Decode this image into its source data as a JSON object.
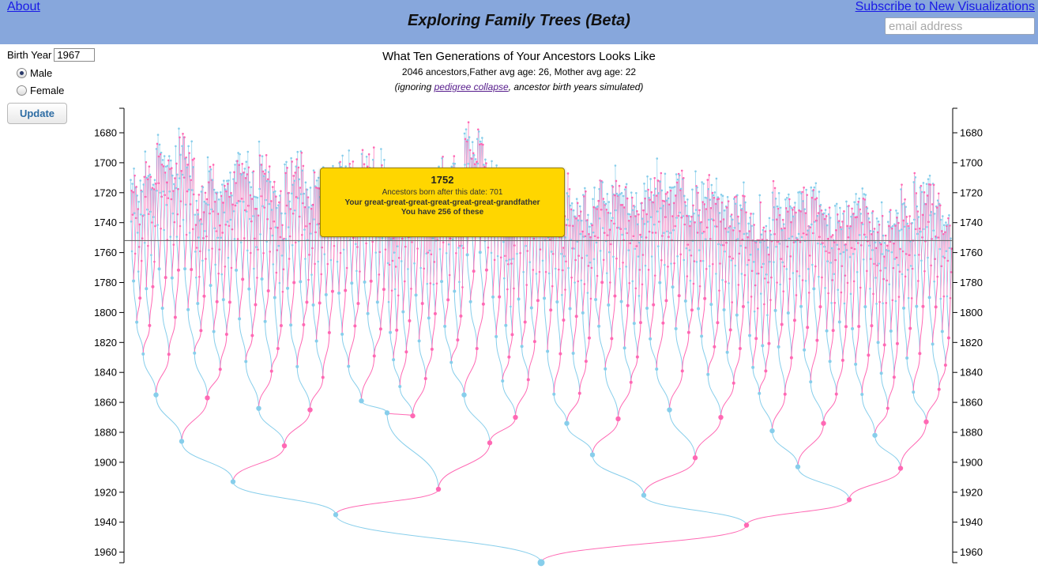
{
  "header": {
    "about_label": "About",
    "title": "Exploring Family Trees (Beta)",
    "subscribe_label": "Subscribe to New Visualizations",
    "email_placeholder": "email address"
  },
  "controls": {
    "birth_year_label": "Birth Year",
    "birth_year_value": "1967",
    "male_label": "Male",
    "female_label": "Female",
    "selected_gender": "Male",
    "update_label": "Update"
  },
  "chart_info": {
    "title": "What Ten Generations of Your Ancestors Looks Like",
    "subtitle": "2046 ancestors,Father avg age: 26, Mother avg age: 22",
    "note_prefix": "(ignoring ",
    "note_link": "pedigree collapse",
    "note_suffix": ", ancestor birth years simulated)"
  },
  "tooltip": {
    "year": "1752",
    "count_text": "Ancestors born after this date: 701",
    "relation_text": "Your great-great-great-great-great-great-grandfather",
    "have_text": "You have 256 of these"
  },
  "colors": {
    "header_bg": "#87a7dc",
    "male": "#87ceeb",
    "female": "#ff69b4",
    "tooltip_bg": "#ffd600"
  },
  "chart_data": {
    "type": "tree",
    "root_birth_year": 1967,
    "generations": 10,
    "total_ancestors": 2046,
    "father_avg_age": 26,
    "mother_avg_age": 22,
    "y_axis": {
      "min": 1670,
      "max": 1970,
      "reversed": false,
      "ticks": [
        1680,
        1700,
        1720,
        1740,
        1760,
        1780,
        1800,
        1820,
        1840,
        1860,
        1880,
        1900,
        1920,
        1940,
        1960
      ]
    },
    "highlight_year": 1752,
    "upper_generations": [
      [
        1935,
        1942
      ],
      [
        1913,
        1918,
        1922,
        1925
      ],
      [
        1886,
        1889,
        1867,
        1887,
        1895,
        1897,
        1903,
        1904
      ],
      [
        1855,
        1857,
        1864,
        1865,
        1859,
        1869,
        1855,
        1870,
        1874,
        1871,
        1865,
        1870,
        1879,
        1874,
        1882,
        1873
      ]
    ]
  }
}
